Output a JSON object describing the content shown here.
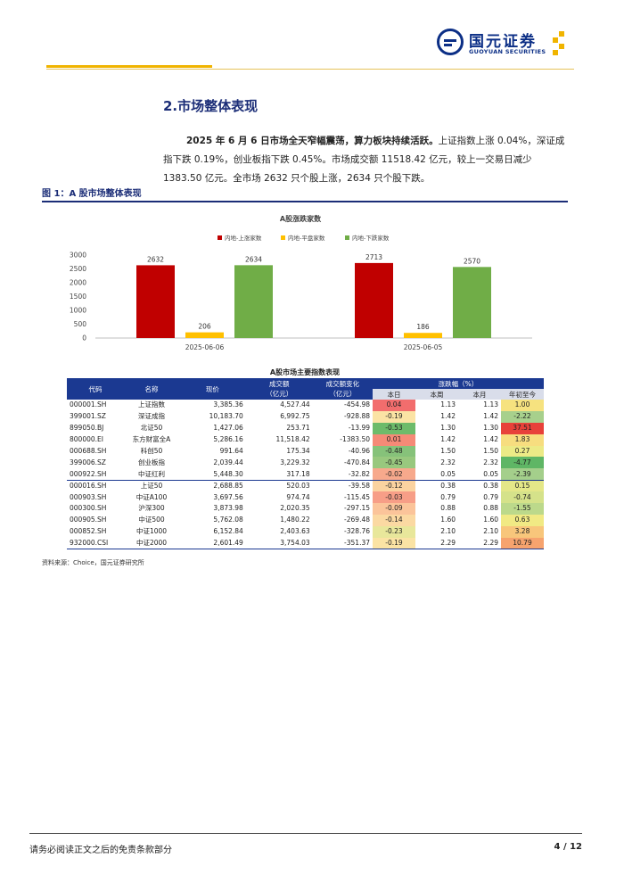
{
  "header": {
    "logo_cn": "国元证券",
    "logo_en": "GUOYUAN SECURITIES"
  },
  "section": {
    "title": "2.市场整体表现",
    "para_bold": "2025 年 6 月 6 日市场全天窄幅震荡，算力板块持续活跃。",
    "para_rest": "上证指数上涨 0.04%，深证成指下跌 0.19%，创业板指下跌 0.45%。市场成交额 11518.42 亿元，较上一交易日减少 1383.50 亿元。全市场 2632 只个股上涨，2634 只个股下跌。"
  },
  "figure": {
    "label": "图 1：A 股市场整体表现"
  },
  "chart_data": {
    "type": "bar",
    "title": "A股涨跌家数",
    "categories": [
      "2025-06-06",
      "2025-06-05"
    ],
    "series": [
      {
        "name": "内地-上涨家数",
        "color": "#c00000",
        "values": [
          2632,
          2713
        ]
      },
      {
        "name": "内地-平盘家数",
        "color": "#ffc000",
        "values": [
          206,
          186
        ]
      },
      {
        "name": "内地-下跌家数",
        "color": "#70ad47",
        "values": [
          2634,
          2570
        ]
      }
    ],
    "ylim": [
      0,
      3000
    ],
    "yticks": [
      0,
      500,
      1000,
      1500,
      2000,
      2500,
      3000
    ],
    "legend": "top",
    "grid": false
  },
  "table": {
    "title": "A股市场主要指数表现",
    "headers": {
      "code": "代码",
      "name": "名称",
      "price": "现价",
      "amount": "成交额\n（亿元）",
      "amount_change": "成交额变化\n（亿元）",
      "change_group": "涨跌幅（%）",
      "day": "本日",
      "week": "本周",
      "month": "本月",
      "ytd": "年初至今"
    },
    "rows": [
      {
        "code": "000001.SH",
        "name": "上证指数",
        "price": "3,385.36",
        "amount": "4,527.44",
        "chg": "-454.98",
        "day": "0.04",
        "week": "1.13",
        "month": "1.13",
        "ytd": "1.00",
        "day_color": "#f26d6d",
        "ytd_color": "#f6e27f"
      },
      {
        "code": "399001.SZ",
        "name": "深证成指",
        "price": "10,183.70",
        "amount": "6,992.75",
        "chg": "-928.88",
        "day": "-0.19",
        "week": "1.42",
        "month": "1.42",
        "ytd": "-2.22",
        "day_color": "#fbe3a4",
        "ytd_color": "#a7d08c"
      },
      {
        "code": "899050.BJ",
        "name": "北证50",
        "price": "1,427.06",
        "amount": "253.71",
        "chg": "-13.99",
        "day": "-0.53",
        "week": "1.30",
        "month": "1.30",
        "ytd": "37.51",
        "day_color": "#6dbb6a",
        "ytd_color": "#e8413a"
      },
      {
        "code": "800000.EI",
        "name": "东方财富全A",
        "price": "5,286.16",
        "amount": "11,518.42",
        "chg": "-1383.50",
        "day": "0.01",
        "week": "1.42",
        "month": "1.42",
        "ytd": "1.83",
        "day_color": "#f58a77",
        "ytd_color": "#f7dd7f"
      },
      {
        "code": "000688.SH",
        "name": "科创50",
        "price": "991.64",
        "amount": "175.34",
        "chg": "-40.96",
        "day": "-0.48",
        "week": "1.50",
        "month": "1.50",
        "ytd": "0.27",
        "day_color": "#86c27a",
        "ytd_color": "#ecea86"
      },
      {
        "code": "399006.SZ",
        "name": "创业板指",
        "price": "2,039.44",
        "amount": "3,229.32",
        "chg": "-470.84",
        "day": "-0.45",
        "week": "2.32",
        "month": "2.32",
        "ytd": "-4.77",
        "day_color": "#98c87e",
        "ytd_color": "#5fb665"
      },
      {
        "code": "000922.SH",
        "name": "中证红利",
        "price": "5,448.30",
        "amount": "317.18",
        "chg": "-32.82",
        "day": "-0.02",
        "week": "0.05",
        "month": "0.05",
        "ytd": "-2.39",
        "day_color": "#f7a98c",
        "ytd_color": "#a4cf8b"
      },
      {
        "code": "000016.SH",
        "name": "上证50",
        "price": "2,688.85",
        "amount": "520.03",
        "chg": "-39.58",
        "day": "-0.12",
        "week": "0.38",
        "month": "0.38",
        "ytd": "0.15",
        "day_color": "#fbd3a0",
        "ytd_color": "#e4e788"
      },
      {
        "code": "000903.SH",
        "name": "中证A100",
        "price": "3,697.56",
        "amount": "974.74",
        "chg": "-115.45",
        "day": "-0.03",
        "week": "0.79",
        "month": "0.79",
        "ytd": "-0.74",
        "day_color": "#f79e87",
        "ytd_color": "#d5e28a"
      },
      {
        "code": "000300.SH",
        "name": "沪深300",
        "price": "3,873.98",
        "amount": "2,020.35",
        "chg": "-297.15",
        "day": "-0.09",
        "week": "0.88",
        "month": "0.88",
        "ytd": "-1.55",
        "day_color": "#fbc49a",
        "ytd_color": "#bcd98b"
      },
      {
        "code": "000905.SH",
        "name": "中证500",
        "price": "5,762.08",
        "amount": "1,480.22",
        "chg": "-269.48",
        "day": "-0.14",
        "week": "1.60",
        "month": "1.60",
        "ytd": "0.63",
        "day_color": "#fbd9a2",
        "ytd_color": "#f1ea84"
      },
      {
        "code": "000852.SH",
        "name": "中证1000",
        "price": "6,152.84",
        "amount": "2,403.63",
        "chg": "-328.76",
        "day": "-0.23",
        "week": "2.10",
        "month": "2.10",
        "ytd": "3.28",
        "day_color": "#e8e79b",
        "ytd_color": "#f8c67b"
      },
      {
        "code": "932000.CSI",
        "name": "中证2000",
        "price": "2,601.49",
        "amount": "3,754.03",
        "chg": "-351.37",
        "day": "-0.19",
        "week": "2.29",
        "month": "2.29",
        "ytd": "10.79",
        "day_color": "#fbe3a4",
        "ytd_color": "#f6a36e"
      }
    ]
  },
  "source": "资料来源：Choice，国元证券研究所",
  "footer": {
    "disclaimer": "请务必阅读正文之后的免责条款部分",
    "page": "4 / 12"
  }
}
